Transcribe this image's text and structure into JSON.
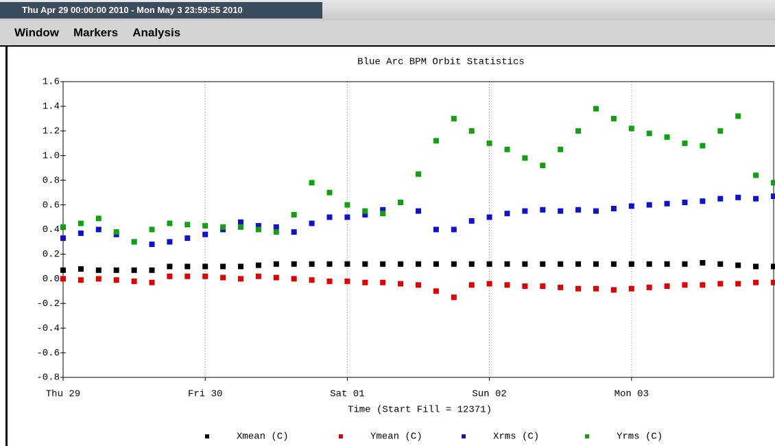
{
  "window": {
    "title": "Thu Apr 29 00:00:00 2010 - Mon May  3 23:59:55 2010"
  },
  "menu": [
    "Window",
    "Markers",
    "Analysis"
  ],
  "chart_data": {
    "type": "scatter",
    "title": "Blue Arc BPM Orbit Statistics",
    "x_label": "Time (Start Fill = 12371)",
    "xlim": [
      0,
      5
    ],
    "xticks": [
      {
        "value": 0,
        "label": "Thu 29"
      },
      {
        "value": 1,
        "label": "Fri 30"
      },
      {
        "value": 2,
        "label": "Sat 01"
      },
      {
        "value": 3,
        "label": "Sun 02"
      },
      {
        "value": 4,
        "label": "Mon 03"
      }
    ],
    "ylim": [
      -0.8,
      1.6
    ],
    "yticks": [
      -0.8,
      -0.6,
      -0.4,
      -0.2,
      {
        "value": 0,
        "label": "0.0"
      },
      0.2,
      0.4,
      0.6,
      0.8,
      {
        "value": 1,
        "label": "1.0"
      },
      1.2,
      1.4,
      1.6
    ],
    "grid": "x",
    "legend": "bottom",
    "x": [
      0,
      0.125,
      0.25,
      0.375,
      0.5,
      0.625,
      0.75,
      0.875,
      1,
      1.125,
      1.25,
      1.375,
      1.5,
      1.625,
      1.75,
      1.875,
      2,
      2.125,
      2.25,
      2.375,
      2.5,
      2.625,
      2.75,
      2.875,
      3,
      3.125,
      3.25,
      3.375,
      3.5,
      3.625,
      3.75,
      3.875,
      4,
      4.125,
      4.25,
      4.375,
      4.5,
      4.625,
      4.75,
      4.875,
      5
    ],
    "series": [
      {
        "name": "Xmean (C)",
        "color": "#000000",
        "values": [
          0.07,
          0.08,
          0.07,
          0.07,
          0.07,
          0.07,
          0.1,
          0.1,
          0.1,
          0.1,
          0.1,
          0.11,
          0.12,
          0.12,
          0.12,
          0.12,
          0.12,
          0.12,
          0.12,
          0.12,
          0.12,
          0.12,
          0.12,
          0.12,
          0.12,
          0.12,
          0.12,
          0.12,
          0.12,
          0.12,
          0.12,
          0.12,
          0.12,
          0.12,
          0.12,
          0.12,
          0.13,
          0.12,
          0.11,
          0.1,
          0.1
        ]
      },
      {
        "name": "Ymean (C)",
        "color": "#e00000",
        "values": [
          0,
          -0.01,
          0,
          -0.01,
          -0.02,
          -0.03,
          0.02,
          0.02,
          0.02,
          0.01,
          0,
          0.02,
          0.01,
          0,
          -0.01,
          -0.02,
          -0.02,
          -0.03,
          -0.03,
          -0.04,
          -0.05,
          -0.1,
          -0.15,
          -0.05,
          -0.04,
          -0.05,
          -0.06,
          -0.06,
          -0.07,
          -0.08,
          -0.08,
          -0.09,
          -0.08,
          -0.07,
          -0.06,
          -0.05,
          -0.05,
          -0.04,
          -0.04,
          -0.03,
          -0.03
        ]
      },
      {
        "name": "Xrms (C)",
        "color": "#1010d0",
        "values": [
          0.33,
          0.37,
          0.4,
          0.36,
          0.3,
          0.28,
          0.3,
          0.33,
          0.36,
          0.4,
          0.46,
          0.43,
          0.42,
          0.38,
          0.45,
          0.5,
          0.5,
          0.52,
          0.56,
          0.62,
          0.55,
          0.4,
          0.4,
          0.47,
          0.5,
          0.53,
          0.55,
          0.56,
          0.55,
          0.56,
          0.55,
          0.57,
          0.59,
          0.6,
          0.61,
          0.62,
          0.63,
          0.65,
          0.66,
          0.65,
          0.67
        ]
      },
      {
        "name": "Yrms (C)",
        "color": "#10a010",
        "values": [
          0.42,
          0.45,
          0.49,
          0.38,
          0.3,
          0.4,
          0.45,
          0.44,
          0.43,
          0.42,
          0.42,
          0.4,
          0.38,
          0.52,
          0.78,
          0.7,
          0.6,
          0.55,
          0.53,
          0.62,
          0.85,
          1.12,
          1.3,
          1.2,
          1.1,
          1.05,
          0.98,
          0.92,
          1.05,
          1.2,
          1.38,
          1.3,
          1.22,
          1.18,
          1.15,
          1.1,
          1.08,
          1.2,
          1.32,
          0.84,
          0.78
        ]
      }
    ]
  }
}
